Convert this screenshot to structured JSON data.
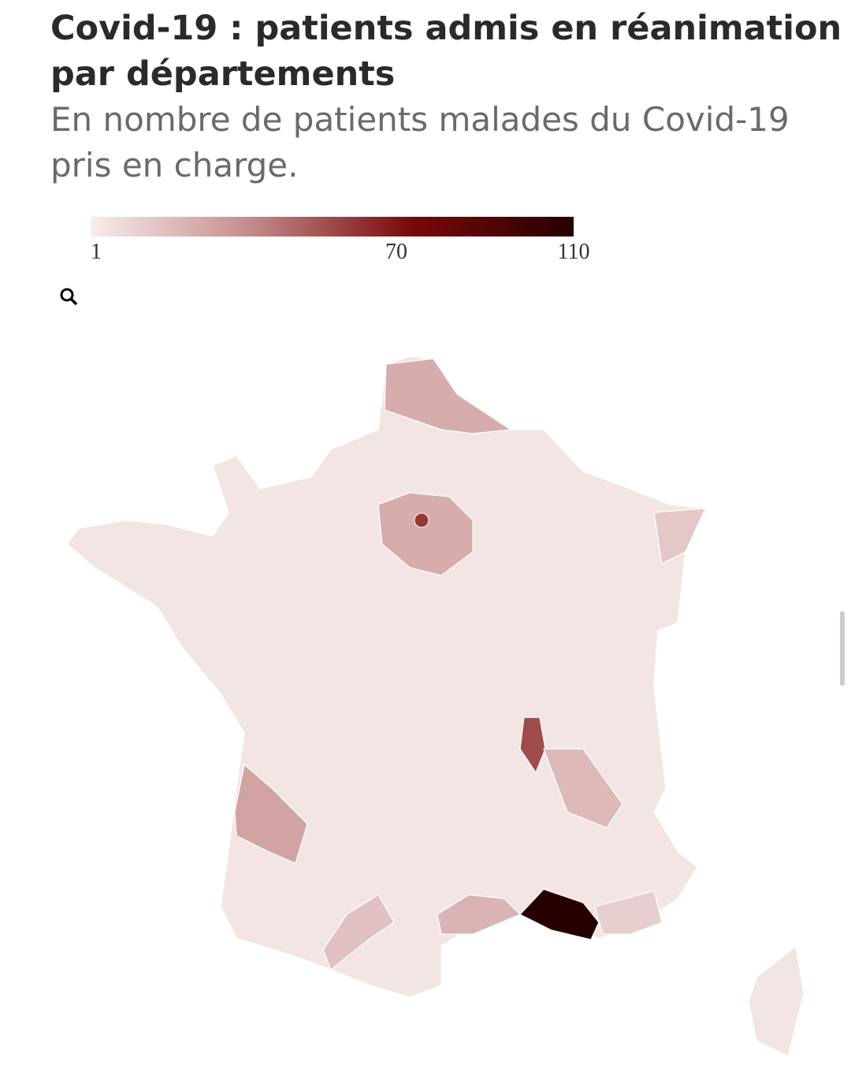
{
  "chart_data": {
    "type": "choropleth",
    "title": [
      "Covid-19 : patients admis en réanimation",
      "par départements"
    ],
    "subtitle": [
      "En nombre de patients malades du Covid-19",
      "pris en charge."
    ],
    "clim": [
      1,
      110
    ],
    "cticks": [
      1,
      70,
      110
    ],
    "colors": [
      "#f8eded",
      "#c48a8a",
      "#7a0808",
      "#260000"
    ],
    "values": [
      4,
      25,
      60,
      25,
      55,
      20,
      110,
      28,
      22,
      17,
      15,
      12,
      4
    ]
  }
}
